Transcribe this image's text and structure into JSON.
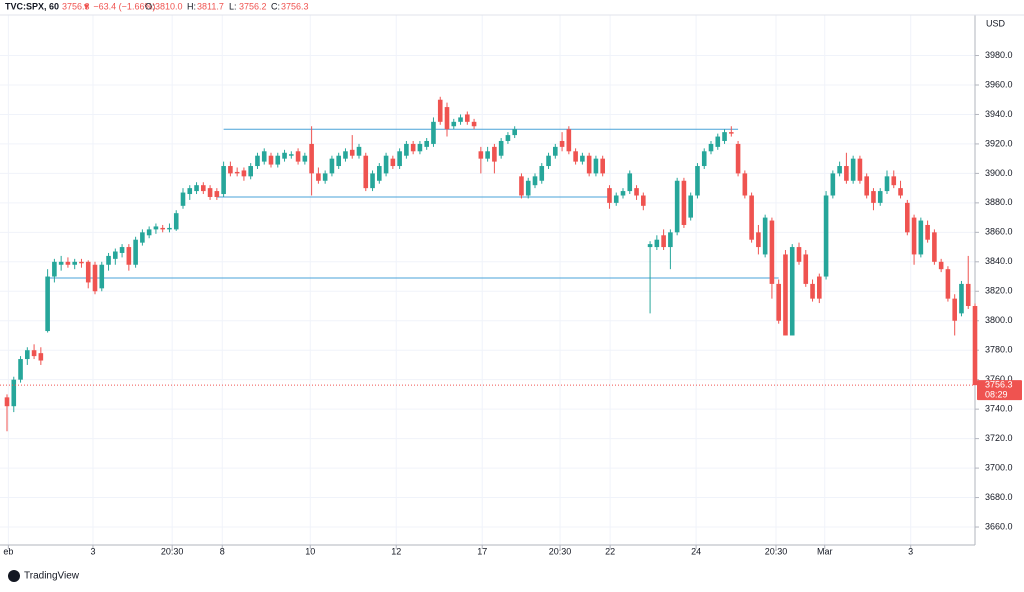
{
  "chart_data": {
    "type": "candlestick",
    "header": {
      "symbol": "TVC:SPX, 60",
      "last": "3756.3",
      "change": "▼ −63.4 (−1.66%)",
      "ohlc": [
        [
          "O:",
          "3810.0"
        ],
        [
          "H:",
          "3811.7"
        ],
        [
          "L:",
          "3756.2"
        ],
        [
          "C:",
          "3756.3"
        ]
      ]
    },
    "currency": "USD",
    "brand": "TradingView",
    "up_color": "#26a69a",
    "down_color": "#ef5350",
    "grid": true,
    "ylim": [
      3647.8,
      4007.5
    ],
    "yticks": [
      {
        "value": 3660,
        "label": "3660.0"
      },
      {
        "value": 3680,
        "label": "3680.0"
      },
      {
        "value": 3700,
        "label": "3700.0"
      },
      {
        "value": 3720,
        "label": "3720.0"
      },
      {
        "value": 3740,
        "label": "3740.0"
      },
      {
        "value": 3760,
        "label": "3760.0"
      },
      {
        "value": 3780,
        "label": "3780.0"
      },
      {
        "value": 3800,
        "label": "3800.0"
      },
      {
        "value": 3820,
        "label": "3820.0"
      },
      {
        "value": 3840,
        "label": "3840.0"
      },
      {
        "value": 3860,
        "label": "3860.0"
      },
      {
        "value": 3880,
        "label": "3880.0"
      },
      {
        "value": 3900,
        "label": "3900.0"
      },
      {
        "value": 3920,
        "label": "3920.0"
      },
      {
        "value": 3940,
        "label": "3940.0"
      },
      {
        "value": 3960,
        "label": "3960.0"
      },
      {
        "value": 3980,
        "label": "3980.0"
      }
    ],
    "xticks": [
      {
        "value": 0.2,
        "label": "eb"
      },
      {
        "value": 12.7,
        "label": "3"
      },
      {
        "value": 24.4,
        "label": "20:30"
      },
      {
        "value": 31.8,
        "label": "8"
      },
      {
        "value": 44.8,
        "label": "10"
      },
      {
        "value": 57.5,
        "label": "12"
      },
      {
        "value": 70.2,
        "label": "17"
      },
      {
        "value": 81.7,
        "label": "20:30"
      },
      {
        "value": 89.1,
        "label": "22"
      },
      {
        "value": 101.8,
        "label": "24"
      },
      {
        "value": 113.6,
        "label": "20:30"
      },
      {
        "value": 120.8,
        "label": "Mar"
      },
      {
        "value": 133.5,
        "label": "3"
      }
    ],
    "hlines": [
      {
        "value": 3930,
        "color": "#4aa3d8"
      },
      {
        "value": 3884,
        "color": "#4aa3d8"
      },
      {
        "value": 3829,
        "color": "#4aa3d8"
      }
    ],
    "last_price": 3756.3,
    "countdown": "08:29",
    "ohlc": [
      [
        3748,
        3750,
        3725,
        3742
      ],
      [
        3742,
        3762,
        3738,
        3760
      ],
      [
        3760,
        3776,
        3758,
        3774
      ],
      [
        3774,
        3782,
        3770,
        3780
      ],
      [
        3780,
        3784,
        3774,
        3776
      ],
      [
        3778,
        3782,
        3770,
        3773
      ],
      [
        3793,
        3835,
        3792,
        3830
      ],
      [
        3830,
        3842,
        3826,
        3840
      ],
      [
        3838,
        3844,
        3834,
        3840
      ],
      [
        3840,
        3843,
        3836,
        3838
      ],
      [
        3838,
        3842,
        3835,
        3840
      ],
      [
        3840,
        3842,
        3836,
        3839
      ],
      [
        3840,
        3841,
        3822,
        3826
      ],
      [
        3838,
        3840,
        3818,
        3820
      ],
      [
        3822,
        3840,
        3820,
        3838
      ],
      [
        3838,
        3846,
        3834,
        3844
      ],
      [
        3842,
        3849,
        3838,
        3847
      ],
      [
        3846,
        3852,
        3843,
        3850
      ],
      [
        3850,
        3852,
        3834,
        3838
      ],
      [
        3838,
        3857,
        3836,
        3855
      ],
      [
        3853,
        3862,
        3851,
        3860
      ],
      [
        3858,
        3864,
        3856,
        3862
      ],
      [
        3862,
        3866,
        3859,
        3864
      ],
      [
        3863,
        3865,
        3860,
        3862
      ],
      [
        3862,
        3866,
        3860,
        3863
      ],
      [
        3862,
        3875,
        3861,
        3873
      ],
      [
        3878,
        3890,
        3876,
        3887
      ],
      [
        3886,
        3892,
        3882,
        3890
      ],
      [
        3888,
        3894,
        3886,
        3892
      ],
      [
        3892,
        3894,
        3886,
        3888
      ],
      [
        3890,
        3892,
        3882,
        3884
      ],
      [
        3888,
        3890,
        3882,
        3884
      ],
      [
        3886,
        3908,
        3884,
        3905
      ],
      [
        3905,
        3908,
        3898,
        3900
      ],
      [
        3901,
        3904,
        3898,
        3900
      ],
      [
        3902,
        3904,
        3895,
        3898
      ],
      [
        3898,
        3907,
        3896,
        3905
      ],
      [
        3905,
        3914,
        3903,
        3912
      ],
      [
        3908,
        3917,
        3906,
        3915
      ],
      [
        3912,
        3914,
        3904,
        3906
      ],
      [
        3906,
        3914,
        3904,
        3912
      ],
      [
        3910,
        3916,
        3908,
        3914
      ],
      [
        3912,
        3915,
        3910,
        3913
      ],
      [
        3915,
        3917,
        3906,
        3908
      ],
      [
        3908,
        3914,
        3906,
        3912
      ],
      [
        3920,
        3932,
        3885,
        3900
      ],
      [
        3900,
        3904,
        3893,
        3895
      ],
      [
        3895,
        3902,
        3893,
        3900
      ],
      [
        3900,
        3912,
        3898,
        3910
      ],
      [
        3905,
        3914,
        3903,
        3912
      ],
      [
        3910,
        3917,
        3908,
        3915
      ],
      [
        3916,
        3926,
        3910,
        3912
      ],
      [
        3912,
        3920,
        3910,
        3918
      ],
      [
        3912,
        3914,
        3888,
        3890
      ],
      [
        3890,
        3902,
        3888,
        3900
      ],
      [
        3895,
        3907,
        3893,
        3905
      ],
      [
        3900,
        3914,
        3898,
        3912
      ],
      [
        3910,
        3912,
        3903,
        3905
      ],
      [
        3905,
        3917,
        3903,
        3915
      ],
      [
        3912,
        3922,
        3910,
        3920
      ],
      [
        3920,
        3922,
        3913,
        3915
      ],
      [
        3915,
        3922,
        3913,
        3920
      ],
      [
        3918,
        3924,
        3916,
        3922
      ],
      [
        3920,
        3938,
        3918,
        3935
      ],
      [
        3950,
        3952,
        3933,
        3935
      ],
      [
        3945,
        3948,
        3925,
        3930
      ],
      [
        3932,
        3937,
        3930,
        3935
      ],
      [
        3935,
        3940,
        3933,
        3938
      ],
      [
        3940,
        3942,
        3933,
        3935
      ],
      [
        3935,
        3937,
        3930,
        3932
      ],
      [
        3915,
        3918,
        3900,
        3910
      ],
      [
        3910,
        3918,
        3908,
        3915
      ],
      [
        3918,
        3920,
        3900,
        3908
      ],
      [
        3912,
        3924,
        3910,
        3922
      ],
      [
        3922,
        3928,
        3920,
        3926
      ],
      [
        3926,
        3932,
        3924,
        3930
      ],
      [
        3898,
        3900,
        3883,
        3885
      ],
      [
        3885,
        3897,
        3883,
        3895
      ],
      [
        3892,
        3900,
        3890,
        3898
      ],
      [
        3895,
        3907,
        3893,
        3905
      ],
      [
        3905,
        3914,
        3903,
        3912
      ],
      [
        3912,
        3920,
        3910,
        3918
      ],
      [
        3922,
        3928,
        3915,
        3918
      ],
      [
        3930,
        3932,
        3913,
        3915
      ],
      [
        3915,
        3917,
        3906,
        3908
      ],
      [
        3908,
        3914,
        3906,
        3912
      ],
      [
        3912,
        3914,
        3898,
        3900
      ],
      [
        3900,
        3912,
        3898,
        3910
      ],
      [
        3910,
        3912,
        3898,
        3900
      ],
      [
        3890,
        3892,
        3876,
        3880
      ],
      [
        3880,
        3887,
        3878,
        3885
      ],
      [
        3885,
        3890,
        3883,
        3888
      ],
      [
        3888,
        3902,
        3886,
        3900
      ],
      [
        3890,
        3892,
        3882,
        3885
      ],
      [
        3885,
        3887,
        3875,
        3878
      ],
      [
        3850,
        3854,
        3805,
        3852
      ],
      [
        3850,
        3858,
        3848,
        3855
      ],
      [
        3858,
        3862,
        3848,
        3850
      ],
      [
        3850,
        3862,
        3835,
        3860
      ],
      [
        3860,
        3897,
        3858,
        3895
      ],
      [
        3895,
        3897,
        3863,
        3865
      ],
      [
        3870,
        3887,
        3868,
        3885
      ],
      [
        3885,
        3907,
        3883,
        3905
      ],
      [
        3905,
        3917,
        3903,
        3915
      ],
      [
        3915,
        3922,
        3913,
        3920
      ],
      [
        3918,
        3927,
        3916,
        3925
      ],
      [
        3922,
        3930,
        3920,
        3928
      ],
      [
        3928,
        3932,
        3925,
        3927
      ],
      [
        3920,
        3922,
        3898,
        3900
      ],
      [
        3900,
        3902,
        3883,
        3885
      ],
      [
        3885,
        3887,
        3853,
        3855
      ],
      [
        3860,
        3865,
        3845,
        3850
      ],
      [
        3845,
        3872,
        3843,
        3870
      ],
      [
        3868,
        3870,
        3815,
        3825
      ],
      [
        3825,
        3828,
        3798,
        3800
      ],
      [
        3845,
        3848,
        3790,
        3790
      ],
      [
        3790,
        3852,
        3790,
        3850
      ],
      [
        3850,
        3853,
        3838,
        3840
      ],
      [
        3845,
        3848,
        3823,
        3825
      ],
      [
        3825,
        3828,
        3813,
        3815
      ],
      [
        3830,
        3832,
        3812,
        3815
      ],
      [
        3830,
        3888,
        3828,
        3885
      ],
      [
        3885,
        3902,
        3883,
        3900
      ],
      [
        3900,
        3908,
        3898,
        3905
      ],
      [
        3905,
        3914,
        3893,
        3895
      ],
      [
        3895,
        3912,
        3893,
        3910
      ],
      [
        3910,
        3912,
        3893,
        3895
      ],
      [
        3898,
        3900,
        3883,
        3885
      ],
      [
        3888,
        3890,
        3875,
        3880
      ],
      [
        3880,
        3890,
        3878,
        3888
      ],
      [
        3888,
        3902,
        3886,
        3898
      ],
      [
        3898,
        3902,
        3890,
        3892
      ],
      [
        3890,
        3895,
        3883,
        3885
      ],
      [
        3880,
        3882,
        3858,
        3860
      ],
      [
        3870,
        3872,
        3838,
        3845
      ],
      [
        3845,
        3870,
        3843,
        3868
      ],
      [
        3865,
        3868,
        3853,
        3855
      ],
      [
        3860,
        3862,
        3838,
        3840
      ],
      [
        3840,
        3842,
        3833,
        3835
      ],
      [
        3835,
        3837,
        3813,
        3815
      ],
      [
        3815,
        3818,
        3790,
        3800
      ],
      [
        3805,
        3827,
        3803,
        3825
      ],
      [
        3825,
        3844,
        3808,
        3810
      ],
      [
        3810.0,
        3811.7,
        3756.2,
        3756.3
      ]
    ]
  }
}
